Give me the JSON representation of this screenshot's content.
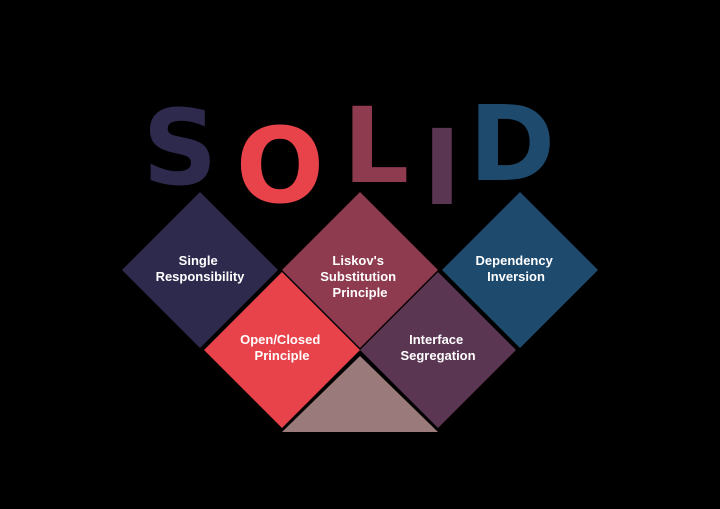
{
  "title_letters": [
    {
      "char": "S",
      "color": "#2e2a4d"
    },
    {
      "char": "O",
      "color": "#e8434a"
    },
    {
      "char": "L",
      "color": "#8e3a4f"
    },
    {
      "char": "I",
      "color": "#5a3653"
    },
    {
      "char": "D",
      "color": "#1e4a6e"
    }
  ],
  "principles": [
    {
      "lines": [
        "Single",
        "Responsibility"
      ],
      "color": "#2e2a4d"
    },
    {
      "lines": [
        "Open/Closed",
        "Principle"
      ],
      "color": "#e8434a"
    },
    {
      "lines": [
        "Liskov's",
        "Substitution",
        "Principle"
      ],
      "color": "#8e3a4f"
    },
    {
      "lines": [
        "Interface",
        "Segregation"
      ],
      "color": "#5a3653"
    },
    {
      "lines": [
        "Dependency",
        "Inversion"
      ],
      "color": "#1e4a6e"
    }
  ],
  "colors": {
    "background": "#000000",
    "bottom_wedge": "#9a7a7a"
  }
}
